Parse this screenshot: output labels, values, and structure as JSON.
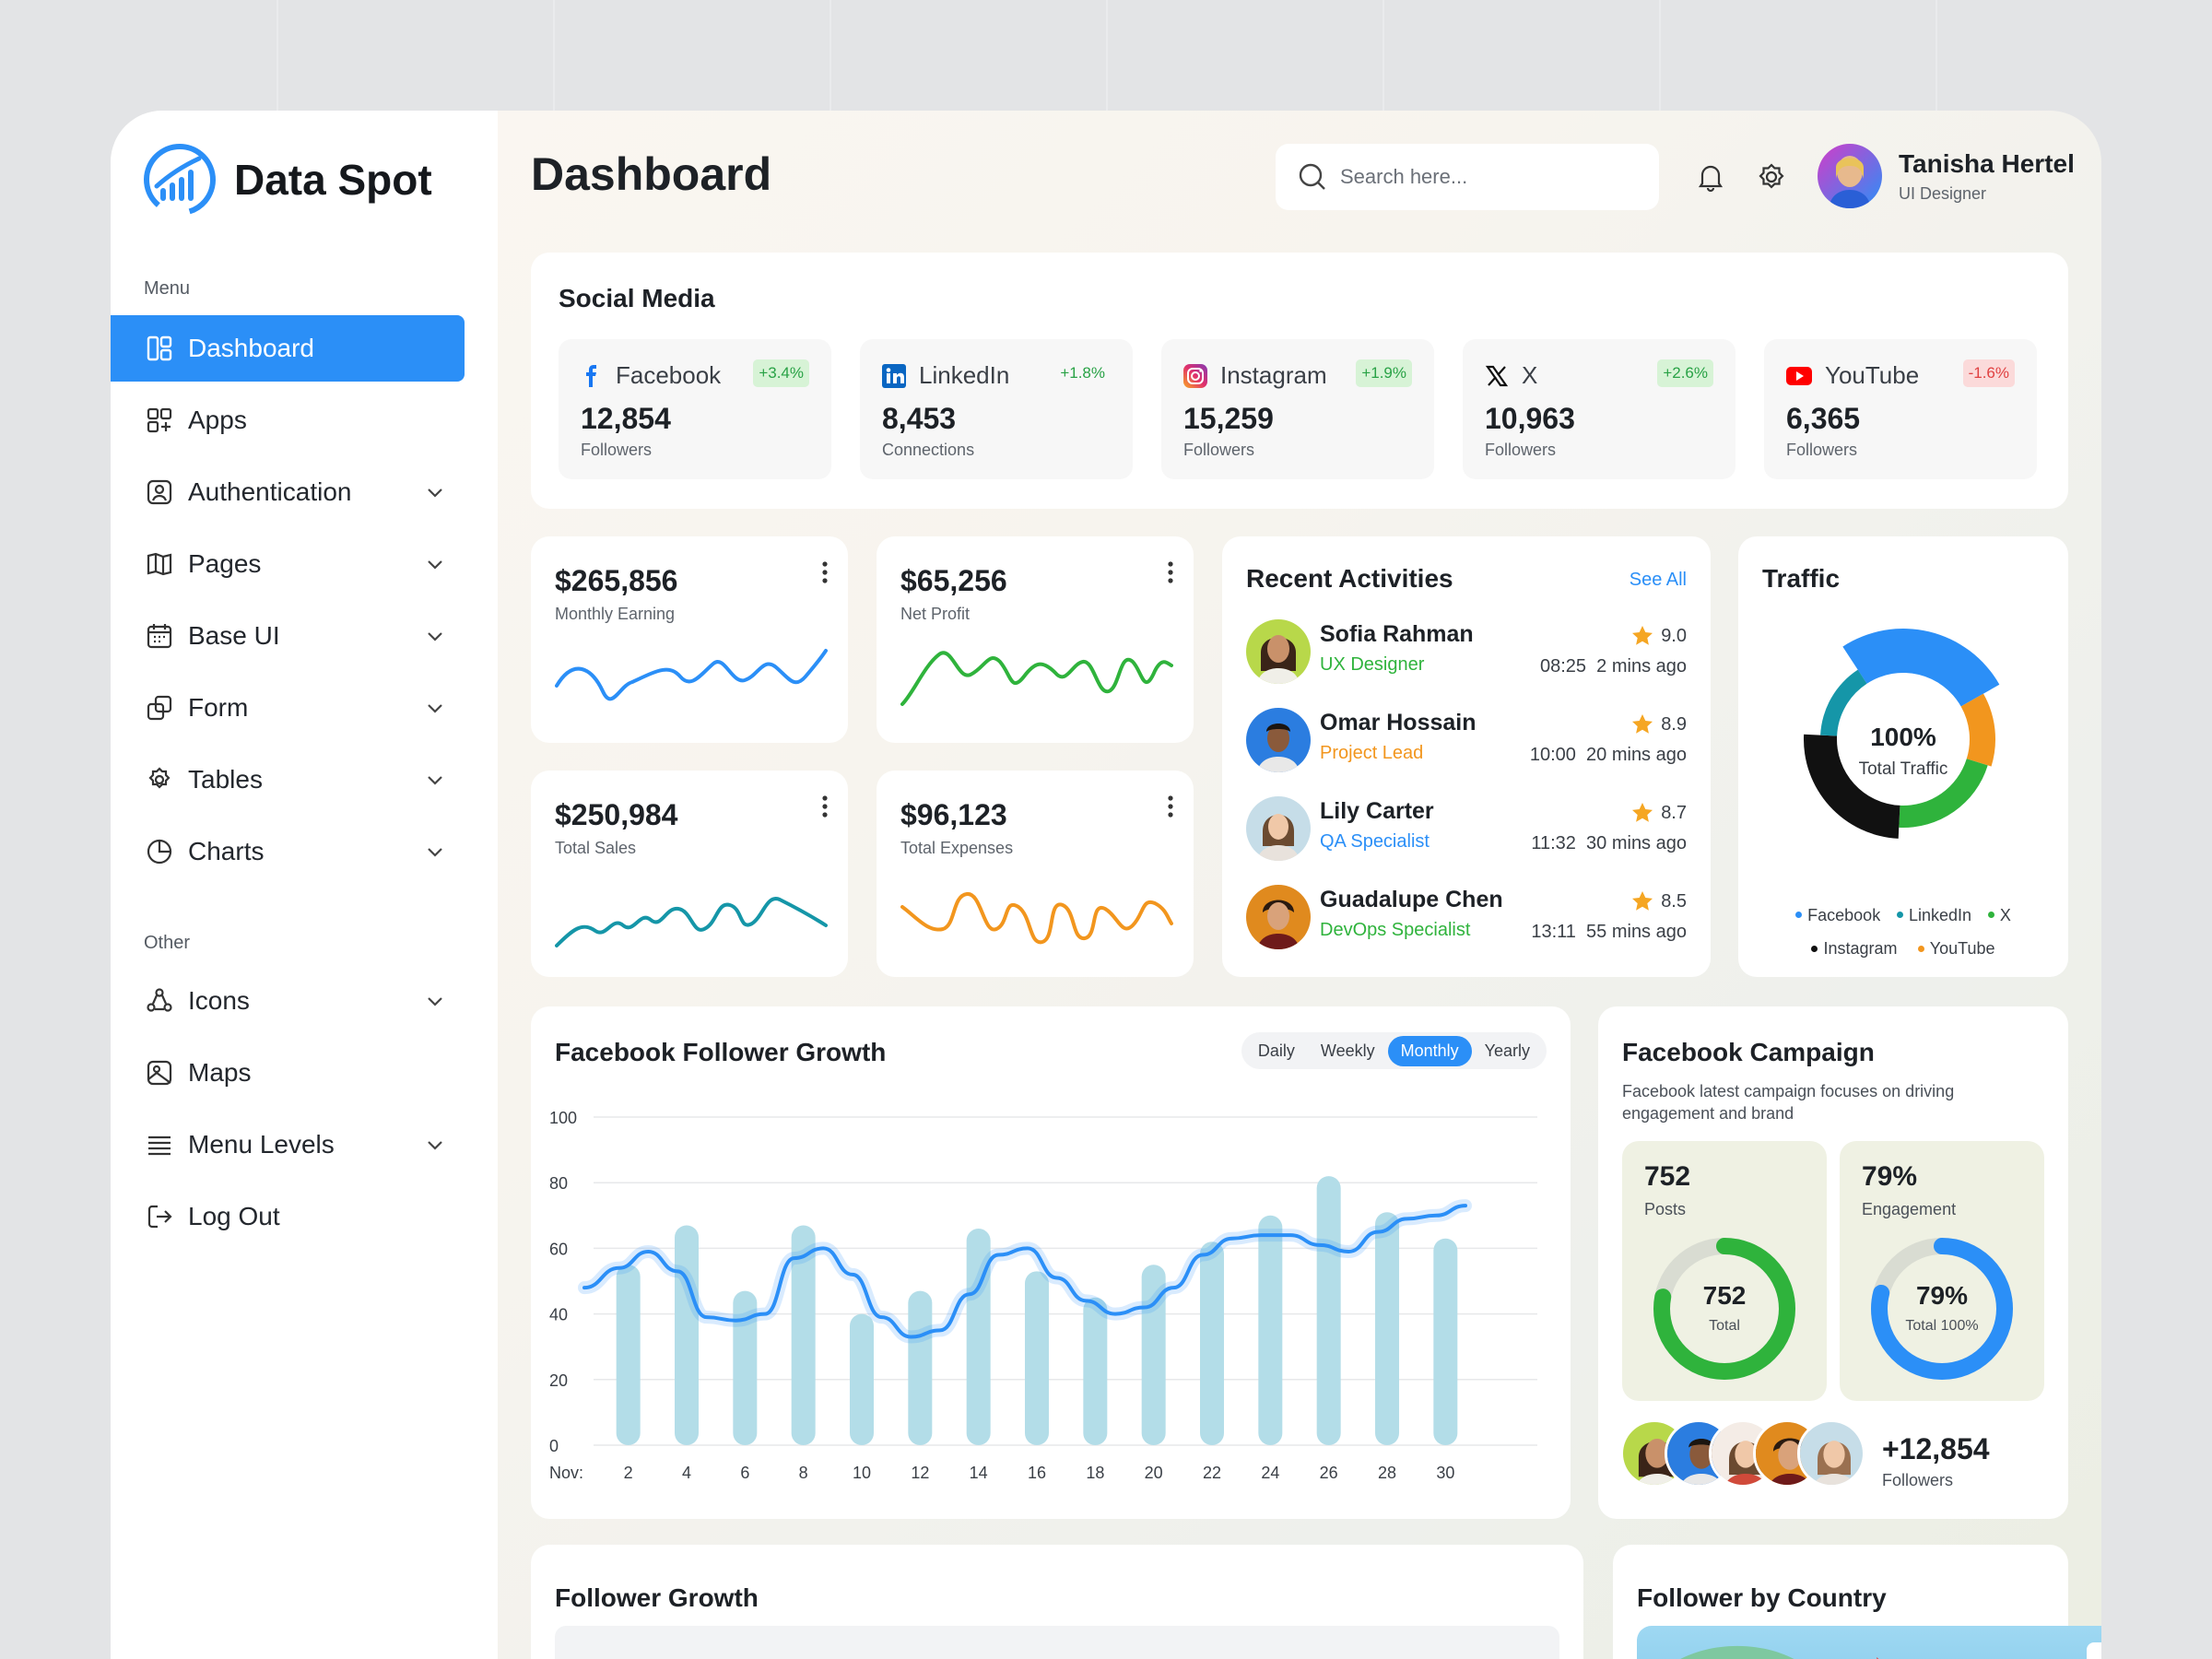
{
  "app": {
    "name": "Data Spot"
  },
  "sidebar": {
    "menu_caption": "Menu",
    "items": [
      {
        "label": "Dashboard",
        "icon": "dashboard-icon",
        "active": true,
        "expandable": false
      },
      {
        "label": "Apps",
        "icon": "apps-icon",
        "active": false,
        "expandable": false
      },
      {
        "label": "Authentication",
        "icon": "user-icon",
        "active": false,
        "expandable": true
      },
      {
        "label": "Pages",
        "icon": "book-icon",
        "active": false,
        "expandable": true
      },
      {
        "label": "Base UI",
        "icon": "calendar-icon",
        "active": false,
        "expandable": true
      },
      {
        "label": "Form",
        "icon": "form-icon",
        "active": false,
        "expandable": true
      },
      {
        "label": "Tables",
        "icon": "gear-icon",
        "active": false,
        "expandable": true
      },
      {
        "label": "Charts",
        "icon": "pie-icon",
        "active": false,
        "expandable": true
      }
    ],
    "other_caption": "Other",
    "other_items": [
      {
        "label": "Icons",
        "icon": "shapes-icon",
        "expandable": true
      },
      {
        "label": "Maps",
        "icon": "map-icon",
        "expandable": false
      },
      {
        "label": "Menu Levels",
        "icon": "menu-icon",
        "expandable": true
      },
      {
        "label": "Log Out",
        "icon": "logout-icon",
        "expandable": false
      }
    ]
  },
  "header": {
    "title": "Dashboard",
    "search_placeholder": "Search here...",
    "user": {
      "name": "Tanisha Hertel",
      "role": "UI Designer"
    }
  },
  "social_media": {
    "title": "Social Media",
    "tiles": [
      {
        "platform": "Facebook",
        "change": "+3.4%",
        "trend": "up",
        "value": "12,854",
        "unit": "Followers"
      },
      {
        "platform": "LinkedIn",
        "change": "+1.8%",
        "trend": "up",
        "value": "8,453",
        "unit": "Connections"
      },
      {
        "platform": "Instagram",
        "change": "+1.9%",
        "trend": "up",
        "value": "15,259",
        "unit": "Followers"
      },
      {
        "platform": "X",
        "change": "+2.6%",
        "trend": "up",
        "value": "10,963",
        "unit": "Followers"
      },
      {
        "platform": "YouTube",
        "change": "-1.6%",
        "trend": "down",
        "value": "6,365",
        "unit": "Followers"
      }
    ]
  },
  "stats": [
    {
      "amount": "$265,856",
      "label": "Monthly Earning",
      "color": "#2b8ff7"
    },
    {
      "amount": "$65,256",
      "label": "Net Profit",
      "color": "#2fb33c"
    },
    {
      "amount": "$250,984",
      "label": "Total Sales",
      "color": "#1596a8"
    },
    {
      "amount": "$96,123",
      "label": "Total Expenses",
      "color": "#f2961e"
    }
  ],
  "recent_activities": {
    "title": "Recent Activities",
    "see_all": "See All",
    "items": [
      {
        "name": "Sofia Rahman",
        "role": "UX Designer",
        "role_color": "#2fb33c",
        "rating": "9.0",
        "time": "08:25",
        "ago": "2 mins ago"
      },
      {
        "name": "Omar Hossain",
        "role": "Project Lead",
        "role_color": "#f2961e",
        "rating": "8.9",
        "time": "10:00",
        "ago": "20 mins ago"
      },
      {
        "name": "Lily Carter",
        "role": "QA Specialist",
        "role_color": "#2b8ff7",
        "rating": "8.7",
        "time": "11:32",
        "ago": "30 mins ago"
      },
      {
        "name": "Guadalupe Chen",
        "role": "DevOps Specialist",
        "role_color": "#2fb33c",
        "rating": "8.5",
        "time": "13:11",
        "ago": "55 mins ago"
      }
    ]
  },
  "traffic": {
    "title": "Traffic",
    "center_value": "100%",
    "center_label": "Total Traffic",
    "legend": [
      {
        "name": "Facebook",
        "color": "#2b8ff7"
      },
      {
        "name": "LinkedIn",
        "color": "#1596a8"
      },
      {
        "name": "X",
        "color": "#2fb33c"
      },
      {
        "name": "Instagram",
        "color": "#111111"
      },
      {
        "name": "YouTube",
        "color": "#f2961e"
      }
    ]
  },
  "follower_growth": {
    "title": "Facebook Follower Growth",
    "periods": [
      "Daily",
      "Weekly",
      "Monthly",
      "Yearly"
    ],
    "active_period": "Monthly",
    "x_prefix": "Nov:"
  },
  "chart_data": {
    "type": "bar",
    "title": "Facebook Follower Growth",
    "categories": [
      "2",
      "4",
      "6",
      "8",
      "10",
      "12",
      "14",
      "16",
      "18",
      "20",
      "22",
      "24",
      "26",
      "28",
      "30"
    ],
    "values": [
      55,
      67,
      47,
      67,
      40,
      47,
      66,
      53,
      45,
      55,
      62,
      70,
      82,
      71,
      63
    ],
    "line": {
      "x": [
        1,
        2,
        3,
        4,
        5,
        6,
        7,
        8,
        9,
        10,
        11,
        12,
        13,
        14,
        15,
        16,
        17,
        18,
        19,
        20,
        21,
        22,
        23,
        24,
        25,
        26,
        27,
        28,
        29,
        30,
        31
      ],
      "y": [
        48,
        54,
        59,
        53,
        39,
        38,
        40,
        57,
        60,
        52,
        39,
        33,
        35,
        46,
        58,
        60,
        51,
        44,
        40,
        42,
        48,
        58,
        63,
        64,
        64,
        61,
        59,
        65,
        69,
        70,
        73
      ]
    },
    "ylim": [
      0,
      100
    ],
    "yticks": [
      0,
      20,
      40,
      60,
      80,
      100
    ],
    "grid": true
  },
  "traffic_chart": {
    "type": "pie",
    "slices": [
      {
        "name": "Facebook",
        "value": 26
      },
      {
        "name": "YouTube",
        "value": 13
      },
      {
        "name": "X",
        "value": 21
      },
      {
        "name": "Instagram",
        "value": 25
      },
      {
        "name": "LinkedIn",
        "value": 15
      }
    ]
  },
  "campaign": {
    "title": "Facebook Campaign",
    "desc_line1": "Facebook latest campaign focuses on driving",
    "desc_line2": "engagement and brand",
    "posts": {
      "value": "752",
      "label": "Posts",
      "center": "752",
      "center_label": "Total",
      "fraction": 0.78,
      "color": "#2fb33c"
    },
    "engagement": {
      "value": "79%",
      "label": "Engagement",
      "center": "79%",
      "center_label": "Total 100%",
      "fraction": 0.79,
      "color": "#2b8ff7"
    },
    "followers_value": "+12,854",
    "followers_label": "Followers"
  },
  "bottom": {
    "follower_growth_title": "Follower Growth",
    "country_title": "Follower by Country"
  }
}
